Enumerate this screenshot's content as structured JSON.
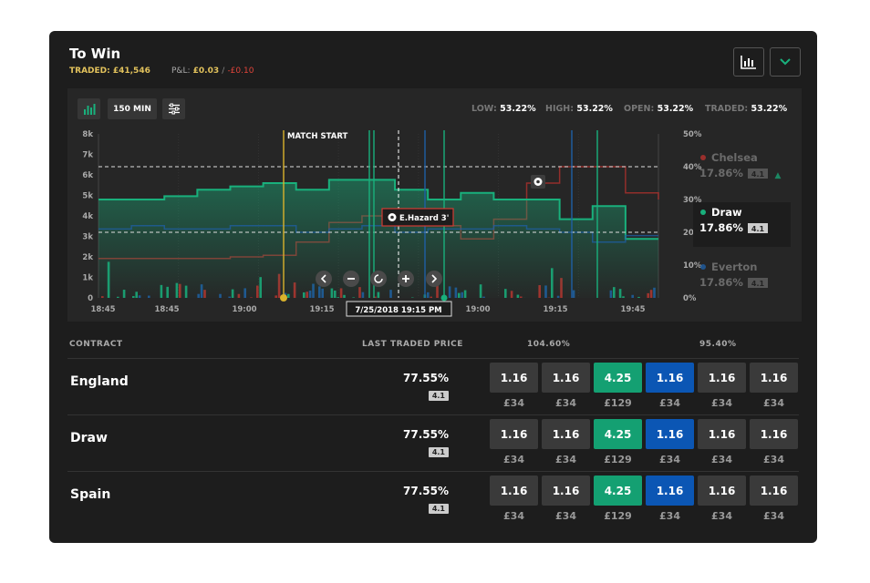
{
  "header": {
    "title": "To Win",
    "traded": "TRADED: £41,546",
    "pl_label": "P&L:",
    "pl_pos": "£0.03",
    "pl_sep": "/",
    "pl_neg": "-£0.10",
    "chart_button_icon": "bar-chart-icon",
    "collapse_button_icon": "chevron-down-icon"
  },
  "toolbar": {
    "chart_type_icon": "bar-chart-icon",
    "range_label": "150 MIN",
    "settings_icon": "sliders-icon"
  },
  "stats": {
    "low_label": "LOW:",
    "low_value": "53.22%",
    "high_label": "HIGH:",
    "high_value": "53.22%",
    "open_label": "OPEN:",
    "open_value": "53.22%",
    "traded_label": "TRADED:",
    "traded_value": "53.22%"
  },
  "chart": {
    "y_left_ticks": [
      "8k",
      "7k",
      "6k",
      "5k",
      "4k",
      "3k",
      "2k",
      "1k",
      "0"
    ],
    "y_right_ticks": [
      "50%",
      "40%",
      "30%",
      "20%",
      "10%",
      "0%"
    ],
    "x_ticks": [
      "18:45",
      "18:45",
      "19:00",
      "19:15",
      "19:00",
      "19:15",
      "19:45"
    ],
    "match_start": "MATCH START",
    "event_label": "E.Hazard  3'",
    "cursor_label": "7/25/2018  19:15 PM",
    "colors": {
      "draw": "#19b07c",
      "chelsea": "#b8322e",
      "everton": "#1f5fa5",
      "match_start": "#d9b22c"
    }
  },
  "chart_data": {
    "type": "line",
    "series": [
      {
        "name": "Chelsea",
        "values": [
          12,
          12,
          12,
          12,
          12.5,
          13,
          17,
          23,
          25,
          25,
          22,
          18,
          24,
          35,
          40,
          40,
          32,
          30
        ]
      },
      {
        "name": "Draw",
        "values": [
          30,
          30,
          31,
          33,
          34,
          35,
          33,
          36,
          36,
          33,
          30,
          32,
          30,
          30,
          24,
          28,
          18,
          18
        ]
      },
      {
        "name": "Everton",
        "values": [
          21,
          22,
          21,
          21,
          22,
          22,
          20,
          21,
          22,
          20,
          21,
          21,
          22,
          21,
          20,
          17,
          19,
          19
        ]
      }
    ],
    "y_right_range": [
      0,
      50
    ],
    "y_left_range": [
      0,
      8000
    ]
  },
  "legend": [
    {
      "name": "Chelsea",
      "value": "17.86%",
      "badge": "4.1",
      "state": "dim",
      "color": "#b8322e",
      "arrow": "▲"
    },
    {
      "name": "Draw",
      "value": "17.86%",
      "badge": "4.1",
      "state": "active",
      "color": "#19b07c",
      "arrow": ""
    },
    {
      "name": "Everton",
      "value": "17.86%",
      "badge": "4.1",
      "state": "dim",
      "color": "#1f5fa5",
      "arrow": ""
    }
  ],
  "table": {
    "col_contract": "CONTRACT",
    "col_ltp": "LAST TRADED PRICE",
    "col_back": "104.60%",
    "col_lay": "95.40%",
    "rows": [
      {
        "name": "England",
        "ltp": "77.55%",
        "badge": "4.1",
        "prices": [
          "1.16",
          "1.16",
          "4.25",
          "1.16",
          "1.16",
          "1.16"
        ],
        "amounts": [
          "£34",
          "£34",
          "£129",
          "£34",
          "£34",
          "£34"
        ]
      },
      {
        "name": "Draw",
        "ltp": "77.55%",
        "badge": "4.1",
        "prices": [
          "1.16",
          "1.16",
          "4.25",
          "1.16",
          "1.16",
          "1.16"
        ],
        "amounts": [
          "£34",
          "£34",
          "£129",
          "£34",
          "£34",
          "£34"
        ]
      },
      {
        "name": "Spain",
        "ltp": "77.55%",
        "badge": "4.1",
        "prices": [
          "1.16",
          "1.16",
          "4.25",
          "1.16",
          "1.16",
          "1.16"
        ],
        "amounts": [
          "£34",
          "£34",
          "£129",
          "£34",
          "£34",
          "£34"
        ]
      }
    ]
  }
}
